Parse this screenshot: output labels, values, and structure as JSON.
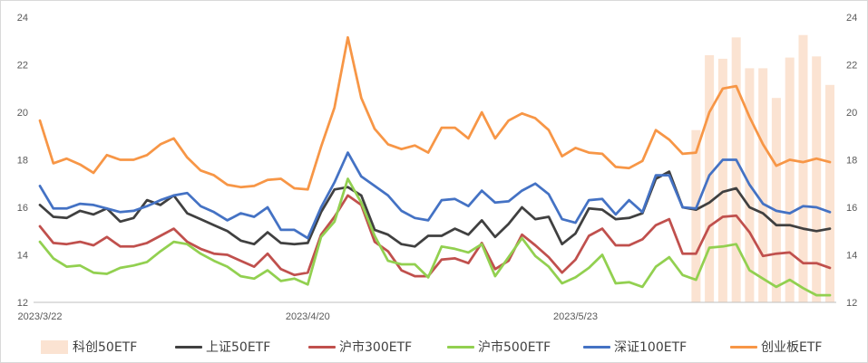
{
  "chart_data": {
    "type": "line",
    "ylim": [
      12,
      24
    ],
    "yticks": [
      12,
      14,
      16,
      18,
      20,
      22,
      24
    ],
    "y2lim": [
      12,
      24
    ],
    "y2ticks": [
      12,
      14,
      16,
      18,
      20,
      22,
      24
    ],
    "grid": false,
    "legend_position": "bottom",
    "categories": [
      "2023/3/22",
      "",
      "",
      "",
      "",
      "",
      "",
      "",
      "",
      "",
      "",
      "",
      "",
      "",
      "",
      "",
      "",
      "",
      "",
      "",
      "2023/4/20",
      "",
      "",
      "",
      "",
      "",
      "",
      "",
      "",
      "",
      "",
      "",
      "",
      "",
      "",
      "",
      "",
      "",
      "",
      "",
      "2023/5/23",
      "",
      "",
      "",
      "",
      "",
      "",
      "",
      "",
      "",
      "",
      "",
      "",
      "",
      "",
      "",
      "",
      "",
      "",
      ""
    ],
    "series": [
      {
        "name": "科创50ETF",
        "type": "bar",
        "color": "#fbe3d2",
        "values": [
          null,
          null,
          null,
          null,
          null,
          null,
          null,
          null,
          null,
          null,
          null,
          null,
          null,
          null,
          null,
          null,
          null,
          null,
          null,
          null,
          null,
          null,
          null,
          null,
          null,
          null,
          null,
          null,
          null,
          null,
          null,
          null,
          null,
          null,
          null,
          null,
          null,
          null,
          null,
          null,
          null,
          null,
          null,
          null,
          null,
          null,
          null,
          null,
          null,
          19.25,
          22.4,
          22.25,
          23.15,
          21.85,
          21.85,
          20.6,
          22.3,
          23.25,
          22.35,
          21.15
        ]
      },
      {
        "name": "上证50ETF",
        "type": "line",
        "color": "#404040",
        "values": [
          16.1,
          15.6,
          15.55,
          15.85,
          15.7,
          15.95,
          15.4,
          15.55,
          16.3,
          16.1,
          16.5,
          15.75,
          15.5,
          15.25,
          15.0,
          14.6,
          14.45,
          14.95,
          14.5,
          14.45,
          14.5,
          15.8,
          16.75,
          16.85,
          16.5,
          15.05,
          14.85,
          14.45,
          14.35,
          14.8,
          14.8,
          15.1,
          14.85,
          15.45,
          14.75,
          15.3,
          16.0,
          15.5,
          15.6,
          14.45,
          14.9,
          15.95,
          15.9,
          15.5,
          15.55,
          15.75,
          17.2,
          17.5,
          16.0,
          15.9,
          16.2,
          16.65,
          16.8,
          16.0,
          15.75,
          15.25,
          15.25,
          15.1,
          15.0,
          15.1
        ]
      },
      {
        "name": "沪市300ETF",
        "type": "line",
        "color": "#c0504d",
        "values": [
          15.2,
          14.5,
          14.45,
          14.55,
          14.4,
          14.75,
          14.35,
          14.35,
          14.5,
          14.8,
          15.1,
          14.55,
          14.25,
          14.05,
          14.0,
          13.75,
          13.5,
          14.05,
          13.4,
          13.15,
          13.25,
          14.85,
          15.6,
          16.5,
          16.1,
          14.55,
          14.15,
          13.35,
          13.1,
          13.1,
          13.8,
          13.85,
          13.65,
          14.5,
          13.4,
          13.75,
          14.85,
          14.4,
          13.9,
          13.25,
          13.8,
          14.8,
          15.1,
          14.4,
          14.4,
          14.65,
          15.25,
          15.5,
          14.05,
          14.05,
          15.2,
          15.6,
          15.65,
          14.95,
          13.95,
          14.05,
          14.1,
          13.65,
          13.65,
          13.45
        ]
      },
      {
        "name": "沪市500ETF",
        "type": "line",
        "color": "#92d050",
        "values": [
          14.55,
          13.85,
          13.5,
          13.55,
          13.25,
          13.2,
          13.45,
          13.55,
          13.7,
          14.15,
          14.55,
          14.45,
          14.05,
          13.75,
          13.5,
          13.1,
          13.0,
          13.35,
          12.9,
          13.0,
          12.75,
          14.75,
          15.4,
          17.2,
          16.2,
          14.8,
          13.75,
          13.6,
          13.6,
          13.05,
          14.35,
          14.25,
          14.1,
          14.45,
          13.1,
          13.9,
          14.7,
          13.95,
          13.5,
          12.8,
          13.05,
          13.45,
          14.0,
          12.8,
          12.85,
          12.65,
          13.5,
          13.9,
          13.15,
          12.95,
          14.3,
          14.35,
          14.45,
          13.35,
          13.0,
          12.65,
          12.95,
          12.6,
          12.3,
          12.3
        ]
      },
      {
        "name": "深证100ETF",
        "type": "line",
        "color": "#4472c4",
        "values": [
          16.9,
          15.95,
          15.95,
          16.15,
          16.1,
          15.95,
          15.8,
          15.85,
          16.05,
          16.3,
          16.5,
          16.6,
          16.05,
          15.8,
          15.45,
          15.75,
          15.6,
          16.0,
          15.05,
          15.05,
          14.7,
          16.0,
          17.05,
          18.3,
          17.3,
          16.9,
          16.5,
          15.85,
          15.55,
          15.45,
          16.3,
          16.35,
          16.05,
          16.7,
          16.2,
          16.25,
          16.7,
          17.0,
          16.55,
          15.5,
          15.35,
          16.3,
          16.35,
          15.7,
          16.3,
          15.8,
          17.35,
          17.35,
          16.0,
          15.95,
          17.35,
          18.0,
          18.0,
          16.95,
          16.15,
          15.85,
          15.75,
          16.05,
          16.0,
          15.8
        ]
      },
      {
        "name": "创业板ETF",
        "type": "line",
        "color": "#f79646",
        "values": [
          19.65,
          17.85,
          18.05,
          17.8,
          17.45,
          18.2,
          18.0,
          18.0,
          18.2,
          18.65,
          18.9,
          18.1,
          17.55,
          17.35,
          16.95,
          16.85,
          16.9,
          17.15,
          17.2,
          16.8,
          16.75,
          18.55,
          20.2,
          23.15,
          20.6,
          19.3,
          18.65,
          18.45,
          18.6,
          18.3,
          19.35,
          19.35,
          18.9,
          20.0,
          18.9,
          19.65,
          19.95,
          19.75,
          19.25,
          18.15,
          18.5,
          18.3,
          18.25,
          17.7,
          17.65,
          17.95,
          19.25,
          18.85,
          18.25,
          18.3,
          20.0,
          21.0,
          21.1,
          19.8,
          18.65,
          17.75,
          18.0,
          17.9,
          18.05,
          17.9
        ]
      }
    ]
  }
}
